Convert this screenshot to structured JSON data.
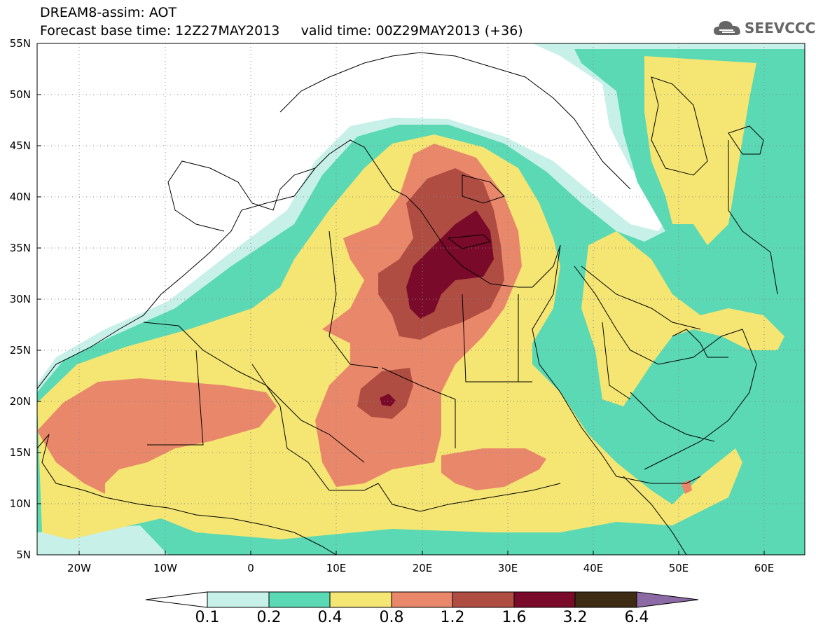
{
  "title": {
    "line1": "DREAM8-assim: AOT",
    "line2": "Forecast base time: 12Z27MAY2013     valid time: 00Z29MAY2013 (+36)"
  },
  "logo": {
    "text": "SEEVCCC",
    "icon": "cloud-icon"
  },
  "map": {
    "projection": "lat-lon",
    "lon_range": [
      -25,
      65
    ],
    "lat_range": [
      5,
      55
    ],
    "y_ticks": [
      "55N",
      "50N",
      "45N",
      "40N",
      "35N",
      "30N",
      "25N",
      "20N",
      "15N",
      "10N",
      "5N"
    ],
    "x_ticks": [
      "20W",
      "10W",
      "0",
      "10E",
      "20E",
      "30E",
      "40E",
      "50E",
      "60E"
    ],
    "variable": "Aerosol optical thickness"
  },
  "colorbar": {
    "labels": [
      "0.1",
      "0.2",
      "0.4",
      "0.8",
      "1.2",
      "1.6",
      "3.2",
      "6.4"
    ],
    "colors": [
      "#c6f0e8",
      "#5ad9b4",
      "#f5e573",
      "#e9876a",
      "#b04d42",
      "#7a0a2a",
      "#3d2b14",
      "#8b6aa6"
    ]
  }
}
